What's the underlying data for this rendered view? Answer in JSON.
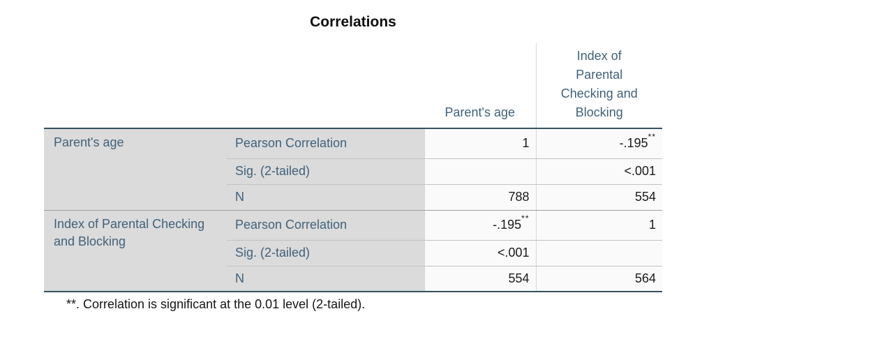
{
  "chart_data": {
    "type": "table",
    "title": "Correlations",
    "col_headers": [
      "Parent's age",
      "Index of Parental Checking and Blocking"
    ],
    "row_groups": [
      {
        "label": "Parent's age",
        "rows": [
          {
            "stat": "Pearson Correlation",
            "values": [
              "1",
              "-.195**"
            ]
          },
          {
            "stat": "Sig. (2-tailed)",
            "values": [
              "",
              "<.001"
            ]
          },
          {
            "stat": "N",
            "values": [
              "788",
              "554"
            ]
          }
        ]
      },
      {
        "label": "Index of Parental Checking and Blocking",
        "rows": [
          {
            "stat": "Pearson Correlation",
            "values": [
              "-.195**",
              "1"
            ]
          },
          {
            "stat": "Sig. (2-tailed)",
            "values": [
              "<.001",
              ""
            ]
          },
          {
            "stat": "N",
            "values": [
              "554",
              "564"
            ]
          }
        ]
      }
    ],
    "footnote": "**. Correlation is significant at the 0.01 level (2-tailed).",
    "layout_hints": {
      "significance_marker": "**",
      "row_label_column_shaded": true,
      "values_right_aligned": true
    }
  },
  "colors": {
    "header_text": "#41617a",
    "label_background": "#dbdbdb",
    "cell_background": "#fafafa",
    "strong_border": "#36505f",
    "light_border": "#c3c3c3",
    "group_border": "#9e9e9e",
    "value_text": "#1a1a1a",
    "page_background": "#ffffff"
  }
}
